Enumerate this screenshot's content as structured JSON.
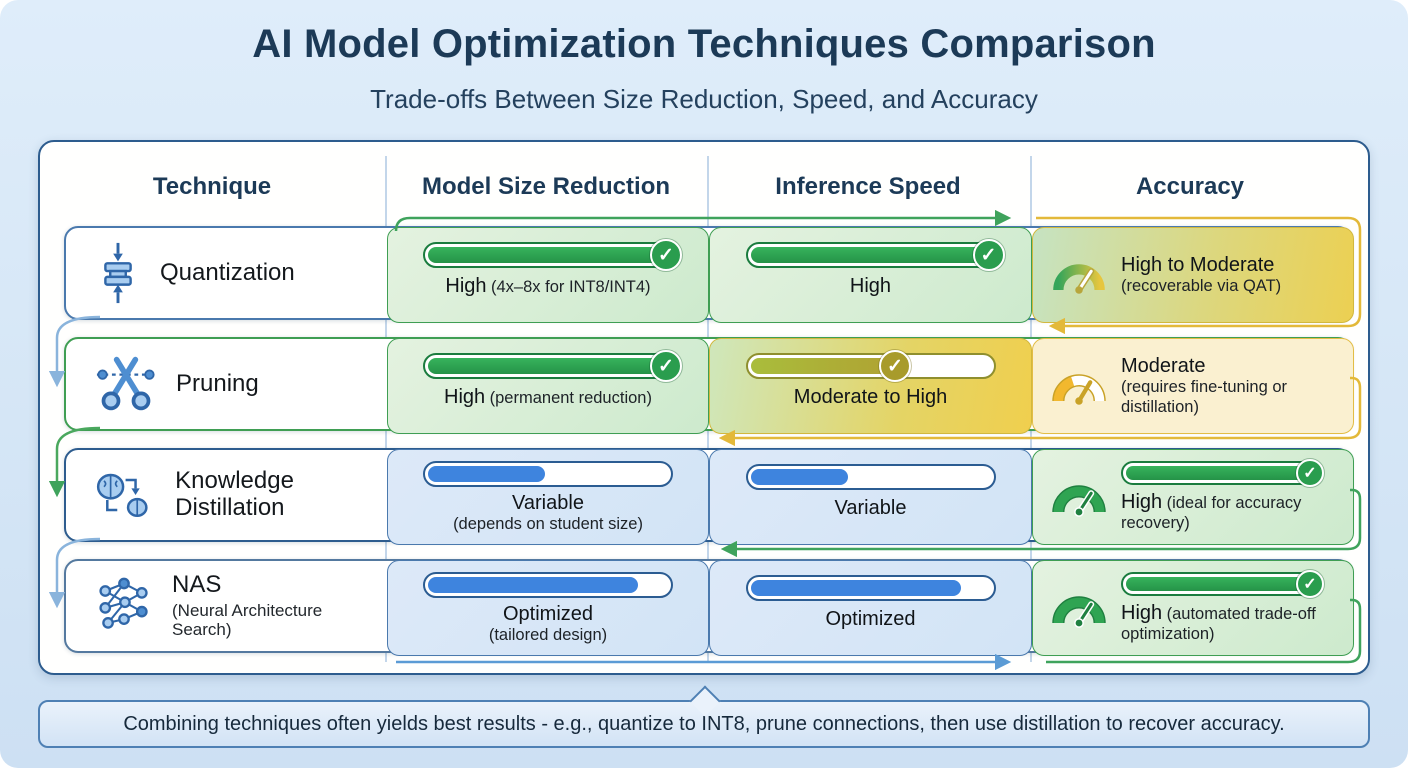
{
  "header": {
    "title": "AI Model Optimization Techniques Comparison",
    "subtitle": "Trade-offs Between Size Reduction, Speed, and Accuracy"
  },
  "table": {
    "columns": [
      "Technique",
      "Model Size Reduction",
      "Inference Speed",
      "Accuracy"
    ],
    "rows": [
      {
        "technique": {
          "name": "Quantization",
          "sub": "",
          "icon": "compress-icon"
        },
        "size_reduction": {
          "label": "High",
          "detail": "(4x–8x for INT8/INT4)",
          "fill_pct": 100,
          "check": true,
          "bar_style": "green"
        },
        "inference_speed": {
          "label": "High",
          "detail": "",
          "fill_pct": 100,
          "check": true,
          "bar_style": "green"
        },
        "accuracy": {
          "label": "High to Moderate",
          "detail": "(recoverable via QAT)",
          "gauge": "green-to-yellow"
        }
      },
      {
        "technique": {
          "name": "Pruning",
          "sub": "",
          "icon": "scissors-icon"
        },
        "size_reduction": {
          "label": "High",
          "detail": "(permanent reduction)",
          "fill_pct": 100,
          "check": true,
          "bar_style": "green"
        },
        "inference_speed": {
          "label": "Moderate to High",
          "detail": "",
          "fill_pct": 62,
          "check": true,
          "bar_style": "olive"
        },
        "accuracy": {
          "label": "Moderate",
          "detail": "(requires fine-tuning or distillation)",
          "gauge": "yellow"
        }
      },
      {
        "technique": {
          "name": "Knowledge Distillation",
          "sub": "",
          "icon": "distillation-icon"
        },
        "size_reduction": {
          "label": "Variable",
          "detail": "(depends on student size)",
          "fill_pct": 50,
          "check": false,
          "bar_style": "blue"
        },
        "inference_speed": {
          "label": "Variable",
          "detail": "",
          "fill_pct": 42,
          "check": false,
          "bar_style": "blue"
        },
        "accuracy": {
          "label": "High",
          "detail": "(ideal for accuracy recovery)",
          "gauge": "green",
          "fill_pct": 100,
          "check": true
        }
      },
      {
        "technique": {
          "name": "NAS",
          "sub": "(Neural Architecture Search)",
          "icon": "network-icon"
        },
        "size_reduction": {
          "label": "Optimized",
          "detail": "(tailored design)",
          "fill_pct": 88,
          "check": false,
          "bar_style": "blue"
        },
        "inference_speed": {
          "label": "Optimized",
          "detail": "",
          "fill_pct": 88,
          "check": false,
          "bar_style": "blue"
        },
        "accuracy": {
          "label": "High",
          "detail": "(automated trade-off optimization)",
          "gauge": "green",
          "fill_pct": 100,
          "check": true
        }
      }
    ]
  },
  "footnote": "Combining techniques often yields best results - e.g., quantize to INT8, prune connections, then use distillation to recover accuracy.",
  "icons": {
    "check_glyph": "✓"
  },
  "colors": {
    "accent_green": "#2ca04c",
    "accent_olive": "#a89b2b",
    "accent_blue": "#3e84de",
    "accent_gold": "#e3b93a",
    "title_navy": "#1c3a57",
    "table_border": "#2d5c8e",
    "background": "#d5e6f6"
  }
}
